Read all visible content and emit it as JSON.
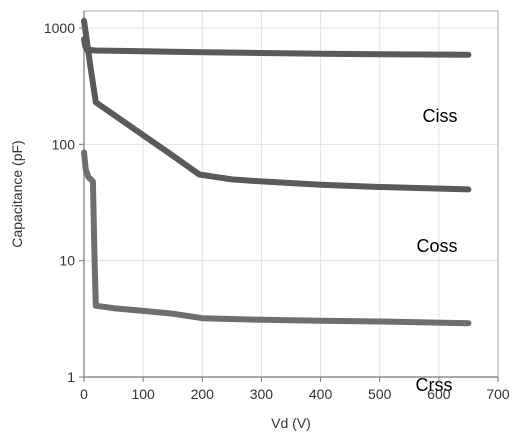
{
  "chart_data": {
    "type": "line",
    "title": "",
    "xlabel": "Vd (V)",
    "ylabel": "Capacitance (pF)",
    "xlim": [
      0,
      700
    ],
    "ylim": [
      1,
      1400
    ],
    "yscale": "log",
    "x_ticks": [
      0,
      100,
      200,
      300,
      400,
      500,
      600,
      700
    ],
    "y_ticks": [
      1,
      10,
      100,
      1000
    ],
    "y_tick_labels": [
      "1",
      "10",
      "100",
      "1000"
    ],
    "grid": true,
    "series_colors": [
      "#5a5a5a",
      "#5a5a5a",
      "#6e6e6e"
    ],
    "series": [
      {
        "name": "Ciss",
        "x": [
          0,
          2,
          5,
          20,
          100,
          200,
          300,
          400,
          500,
          650
        ],
        "y": [
          800,
          700,
          650,
          640,
          630,
          620,
          610,
          600,
          595,
          590
        ]
      },
      {
        "name": "Coss",
        "x": [
          0,
          3,
          10,
          20,
          50,
          100,
          150,
          195,
          250,
          300,
          400,
          500,
          650
        ],
        "y": [
          1150,
          900,
          500,
          230,
          180,
          120,
          80,
          55,
          50,
          48,
          45,
          43,
          41
        ]
      },
      {
        "name": "Crss",
        "x": [
          0,
          3,
          8,
          15,
          18,
          20,
          50,
          100,
          150,
          200,
          300,
          400,
          500,
          650
        ],
        "y": [
          85,
          60,
          52,
          48,
          10,
          4.1,
          3.9,
          3.7,
          3.5,
          3.2,
          3.1,
          3.05,
          3.0,
          2.9
        ]
      }
    ]
  }
}
